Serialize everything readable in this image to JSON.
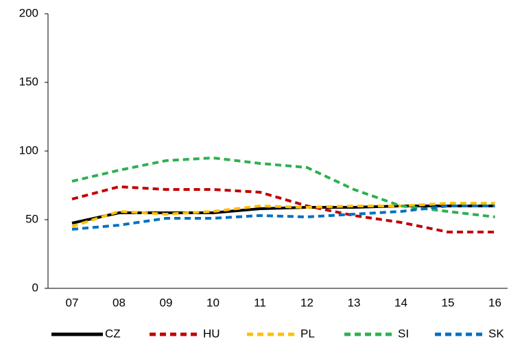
{
  "chart_data": {
    "type": "line",
    "categories": [
      "07",
      "08",
      "09",
      "10",
      "11",
      "12",
      "13",
      "14",
      "15",
      "16"
    ],
    "series": [
      {
        "name": "CZ",
        "color": "#000000",
        "dashed": false,
        "values": [
          47.5,
          55,
          55,
          55,
          58,
          59,
          59,
          60,
          60,
          60
        ]
      },
      {
        "name": "HU",
        "color": "#c00000",
        "dashed": true,
        "values": [
          65,
          74,
          72,
          72,
          70,
          60,
          53,
          48,
          41,
          41
        ]
      },
      {
        "name": "PL",
        "color": "#ffc000",
        "dashed": true,
        "values": [
          45,
          56,
          54,
          56,
          60,
          59,
          60,
          60,
          62,
          62
        ]
      },
      {
        "name": "SI",
        "color": "#2eb050",
        "dashed": true,
        "values": [
          78,
          86,
          93,
          95,
          91,
          88,
          72,
          60,
          56,
          52
        ]
      },
      {
        "name": "SK",
        "color": "#0070c0",
        "dashed": true,
        "values": [
          43,
          46,
          51,
          51,
          53,
          52,
          54,
          56,
          60,
          60
        ]
      }
    ],
    "ylim": [
      0,
      200
    ],
    "yticks": [
      0,
      50,
      100,
      150,
      200
    ],
    "grid": false,
    "legend": "bottom"
  }
}
